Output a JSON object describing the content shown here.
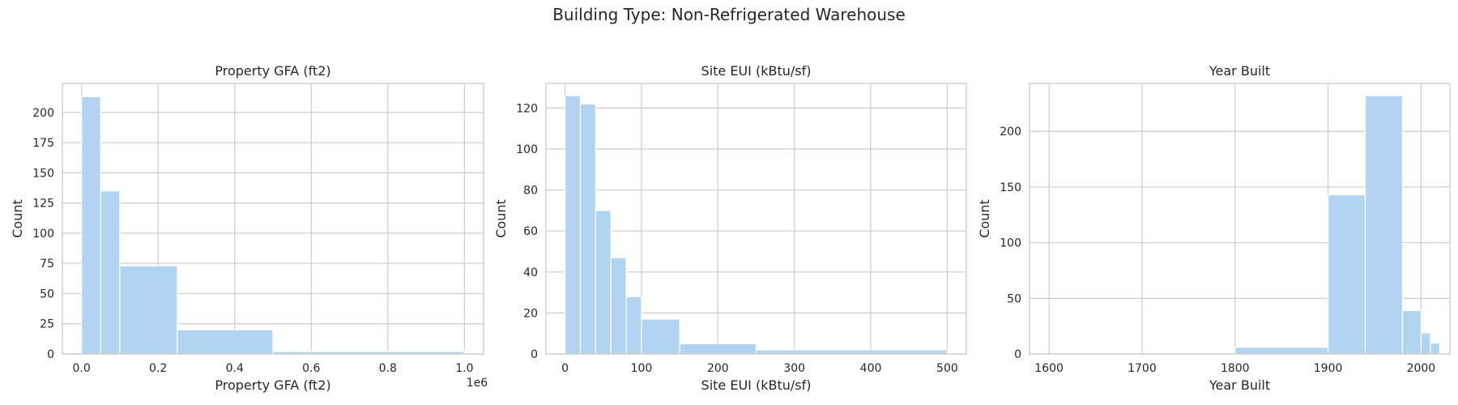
{
  "chart_title": "Building Type: Non-Refrigerated Warehouse",
  "chart_data": [
    {
      "type": "bar",
      "title": "Property GFA (ft2)",
      "xlabel": "Property GFA (ft2)",
      "ylabel": "Count",
      "xlim": [
        -50000,
        1050000
      ],
      "ylim": [
        0,
        224
      ],
      "xticks": [
        0,
        200000,
        400000,
        600000,
        800000,
        1000000
      ],
      "xtick_labels": [
        "0.0",
        "0.2",
        "0.4",
        "0.6",
        "0.8",
        "1.0"
      ],
      "yticks": [
        0,
        25,
        50,
        75,
        100,
        125,
        150,
        175,
        200
      ],
      "offset_text": "1e6",
      "bins": [
        {
          "start": 0,
          "end": 50000,
          "count": 213
        },
        {
          "start": 50000,
          "end": 100000,
          "count": 135
        },
        {
          "start": 100000,
          "end": 250000,
          "count": 73
        },
        {
          "start": 250000,
          "end": 500000,
          "count": 20
        },
        {
          "start": 500000,
          "end": 1000000,
          "count": 2
        }
      ],
      "grid": true
    },
    {
      "type": "bar",
      "title": "Site EUI (kBtu/sf)",
      "xlabel": "Site EUI (kBtu/sf)",
      "ylabel": "Count",
      "xlim": [
        -25,
        525
      ],
      "ylim": [
        0,
        132
      ],
      "xticks": [
        0,
        100,
        200,
        300,
        400,
        500
      ],
      "xtick_labels": [
        "0",
        "100",
        "200",
        "300",
        "400",
        "500"
      ],
      "yticks": [
        0,
        20,
        40,
        60,
        80,
        100,
        120
      ],
      "bins": [
        {
          "start": 0,
          "end": 20,
          "count": 126
        },
        {
          "start": 20,
          "end": 40,
          "count": 122
        },
        {
          "start": 40,
          "end": 60,
          "count": 70
        },
        {
          "start": 60,
          "end": 80,
          "count": 47
        },
        {
          "start": 80,
          "end": 100,
          "count": 28
        },
        {
          "start": 100,
          "end": 150,
          "count": 17
        },
        {
          "start": 150,
          "end": 250,
          "count": 5
        },
        {
          "start": 250,
          "end": 500,
          "count": 2
        }
      ],
      "grid": true
    },
    {
      "type": "bar",
      "title": "Year Built",
      "xlabel": "Year Built",
      "ylabel": "Count",
      "xlim": [
        1579,
        2031
      ],
      "ylim": [
        0,
        243
      ],
      "xticks": [
        1600,
        1700,
        1800,
        1900,
        2000
      ],
      "xtick_labels": [
        "1600",
        "1700",
        "1800",
        "1900",
        "2000"
      ],
      "yticks": [
        0,
        50,
        100,
        150,
        200
      ],
      "bins": [
        {
          "start": 1800,
          "end": 1900,
          "count": 6
        },
        {
          "start": 1900,
          "end": 1940,
          "count": 143
        },
        {
          "start": 1940,
          "end": 1980,
          "count": 232
        },
        {
          "start": 1980,
          "end": 2000,
          "count": 39
        },
        {
          "start": 2000,
          "end": 2010,
          "count": 19
        },
        {
          "start": 2010,
          "end": 2020,
          "count": 10
        }
      ],
      "grid": true
    }
  ]
}
